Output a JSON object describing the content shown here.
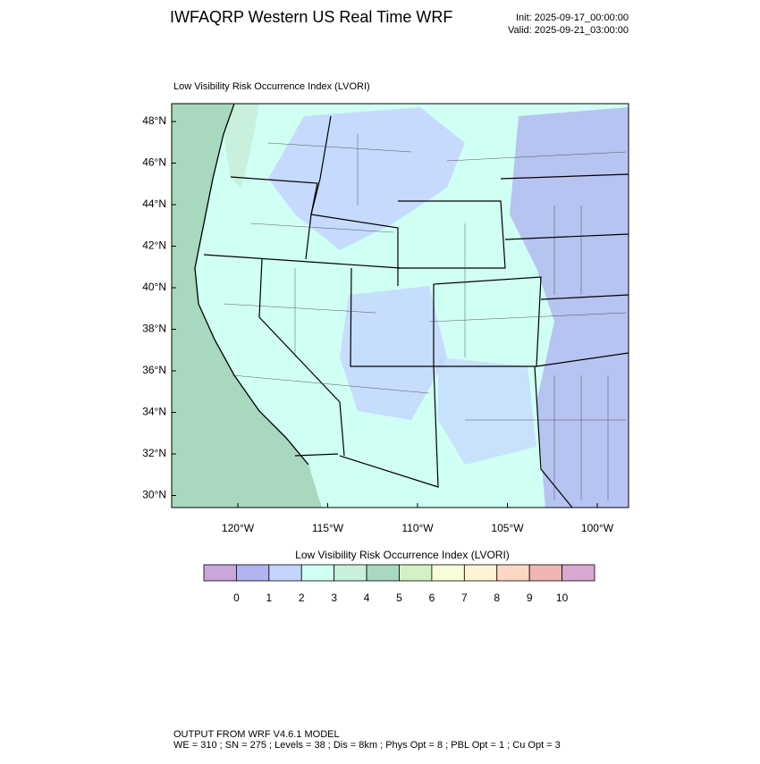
{
  "header": {
    "title": "IWFAQRP Western US Real Time WRF",
    "init": "Init: 2025-09-17_00:00:00",
    "valid": "Valid: 2025-09-21_03:00:00"
  },
  "map": {
    "title": "Low Visibility Risk Occurrence Index   (LVORI)",
    "lat_labels": [
      "48°N",
      "46°N",
      "44°N",
      "42°N",
      "40°N",
      "38°N",
      "36°N",
      "34°N",
      "32°N",
      "30°N"
    ],
    "lon_labels": [
      "120°W",
      "115°W",
      "110°W",
      "105°W",
      "100°W"
    ]
  },
  "colorbar": {
    "title": "Low Visibility Risk Occurrence Index  (LVORI)",
    "colors": [
      "#c9a6db",
      "#b0b4f0",
      "#c4d4ff",
      "#d0fff4",
      "#c8f0dc",
      "#a8d8be",
      "#d4f0c4",
      "#f6ffd8",
      "#fff4d4",
      "#fcd8c4",
      "#f0b4b4",
      "#d8a8d0"
    ],
    "labels": [
      0,
      1,
      2,
      3,
      4,
      5,
      6,
      7,
      8,
      9,
      10
    ]
  },
  "footer": {
    "line1": "OUTPUT FROM WRF V4.6.1 MODEL",
    "line2": "WE = 310 ; SN = 275 ; Levels = 38 ; Dis = 8km ; Phys Opt = 8 ; PBL Opt = 1 ; Cu Opt = 3"
  }
}
